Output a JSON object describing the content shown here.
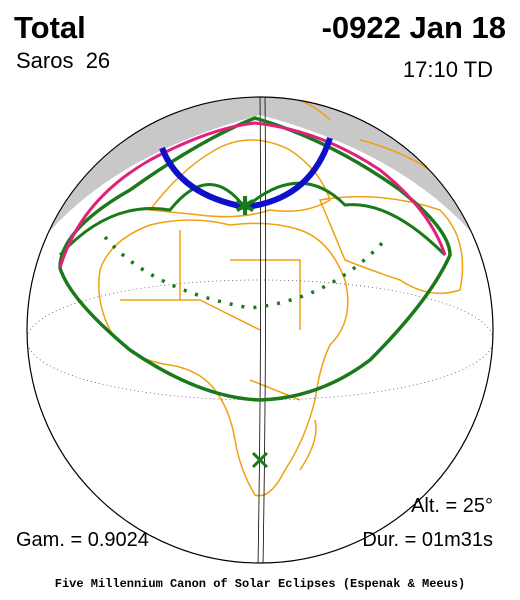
{
  "header": {
    "title": "Total",
    "date": "-0922 Jan 18",
    "saros": "Saros  26",
    "time": "17:10 TD"
  },
  "info": {
    "altitude": "Alt. = 25°",
    "gamma": "Gam. = 0.9024",
    "duration": "Dur. = 01m31s"
  },
  "footer": "Five Millennium Canon of Solar Eclipses (Espenak & Meeus)"
}
